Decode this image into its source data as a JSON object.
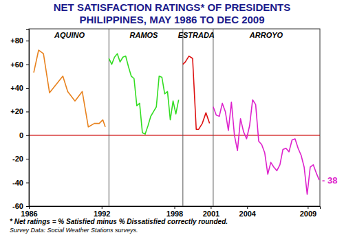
{
  "chart_data": {
    "type": "line",
    "title": "NET SATISFACTION RATINGS* OF PRESIDENTS",
    "subtitle": "PHILIPPINES, MAY 1986 TO DEC 2009",
    "footnotes": [
      "* Net ratings = % Satisfied minus % Dissatisfied correctly rounded.",
      "Survey Data: Social Weather Stations surveys."
    ],
    "annotation": "- 38",
    "xlim": [
      1986,
      2010
    ],
    "xticks": [
      1986,
      1992,
      1998,
      2001,
      2004,
      2009
    ],
    "ylim": [
      -60,
      90
    ],
    "yticks": [
      -60,
      -40,
      -20,
      0,
      {
        "value": 20,
        "label": "+20"
      },
      {
        "value": 40,
        "label": "+40"
      },
      {
        "value": 60,
        "label": "+60"
      },
      {
        "value": 80,
        "label": "+80"
      }
    ],
    "series": [
      {
        "name": "AQUINO",
        "color": "#e8821e",
        "x": [
          1986.4,
          1986.8,
          1987.2,
          1987.7,
          1988.8,
          1989.2,
          1989.8,
          1990.4,
          1990.9,
          1991.4,
          1991.8,
          1992.1,
          1992.3
        ],
        "values": [
          53,
          72,
          69,
          36,
          50,
          37,
          29,
          37,
          7,
          10,
          10,
          13,
          7
        ]
      },
      {
        "name": "RAMOS",
        "color": "#33dd22",
        "x": [
          1992.6,
          1992.83,
          1993.06,
          1993.29,
          1993.52,
          1993.75,
          1993.98,
          1994.21,
          1994.44,
          1994.67,
          1994.9,
          1995.13,
          1995.36,
          1995.59,
          1995.82,
          1996.05,
          1996.28,
          1996.51,
          1996.74,
          1996.97,
          1997.2,
          1997.43,
          1997.66,
          1997.89,
          1998.12,
          1998.35
        ],
        "values": [
          65,
          60,
          66,
          69,
          62,
          66,
          67,
          58,
          50,
          48,
          25,
          27,
          2,
          1,
          8,
          16,
          20,
          24,
          50,
          49,
          35,
          37,
          13,
          29,
          18,
          30
        ]
      },
      {
        "name": "ESTRADA",
        "color": "#dd1111",
        "x": [
          1998.7,
          1998.9,
          1999.2,
          1999.5,
          1999.8,
          2000.0,
          2000.3,
          2000.6,
          2000.9
        ],
        "values": [
          60,
          62,
          67,
          65,
          5,
          5,
          10,
          19,
          10
        ]
      },
      {
        "name": "ARROYO",
        "color": "#dd22cc",
        "x": [
          2001.2,
          2001.45,
          2001.7,
          2001.95,
          2002.2,
          2002.45,
          2002.7,
          2002.95,
          2003.2,
          2003.45,
          2003.7,
          2003.95,
          2004.2,
          2004.45,
          2004.7,
          2004.95,
          2005.2,
          2005.45,
          2005.7,
          2005.95,
          2006.2,
          2006.45,
          2006.7,
          2006.95,
          2007.2,
          2007.45,
          2007.7,
          2007.95,
          2008.2,
          2008.45,
          2008.7,
          2008.95,
          2009.2,
          2009.45,
          2009.7,
          2009.95
        ],
        "values": [
          24,
          17,
          16,
          27,
          20,
          4,
          28,
          0,
          -13,
          14,
          3,
          -3,
          8,
          30,
          26,
          -5,
          -8,
          -15,
          -33,
          -23,
          -27,
          -30,
          -25,
          -12,
          -11,
          -14,
          -4,
          -3,
          -11,
          -17,
          -27,
          -50,
          -27,
          -25,
          -32,
          -38
        ]
      }
    ]
  }
}
